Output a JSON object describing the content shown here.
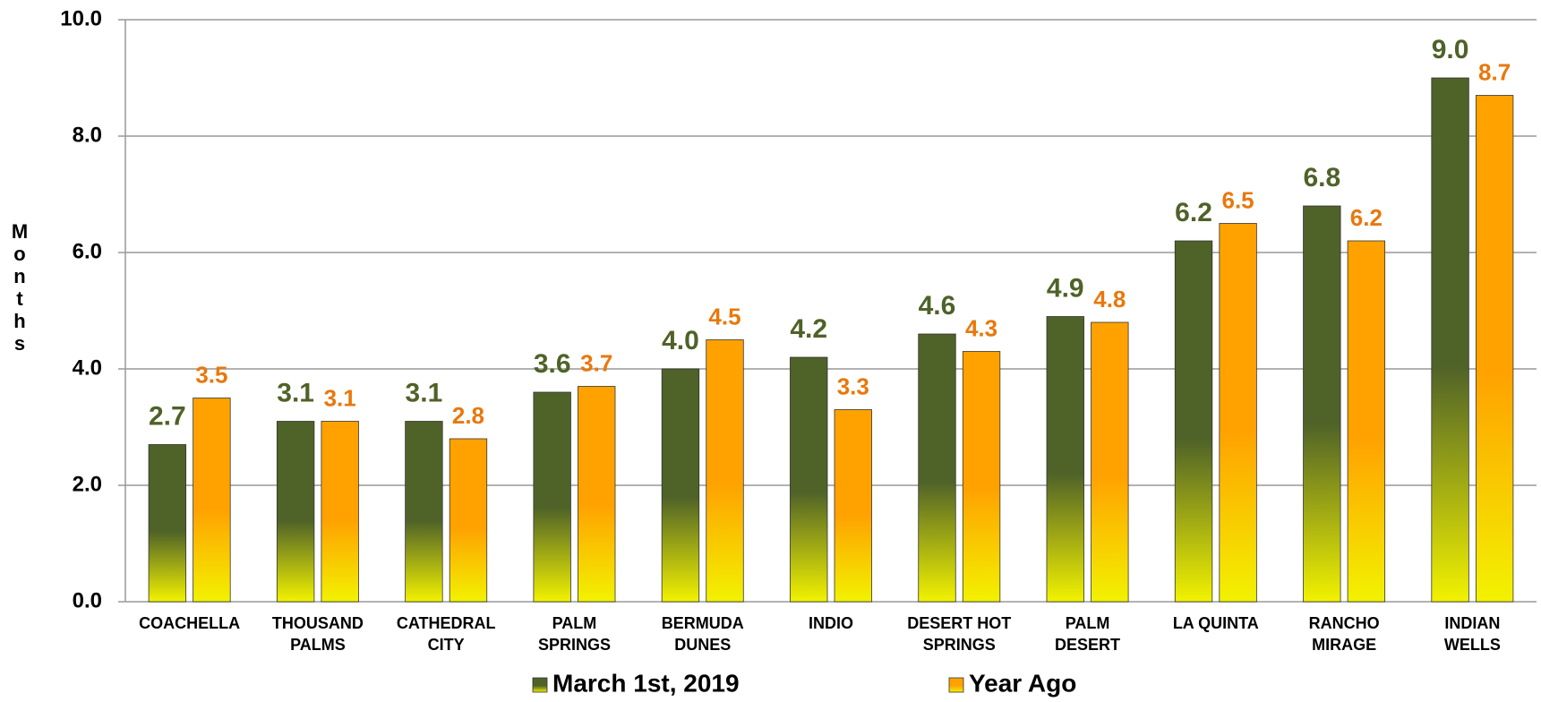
{
  "chart_data": {
    "type": "bar",
    "y_label": "Months",
    "categories": [
      "COACHELLA",
      "THOUSAND PALMS",
      "CATHEDRAL CITY",
      "PALM SPRINGS",
      "BERMUDA DUNES",
      "INDIO",
      "DESERT HOT SPRINGS",
      "PALM DESERT",
      "LA QUINTA",
      "RANCHO MIRAGE",
      "INDIAN WELLS"
    ],
    "series": [
      {
        "name": "March 1st, 2019",
        "color": "#4f6228",
        "values": [
          2.7,
          3.1,
          3.1,
          3.6,
          4.0,
          4.2,
          4.6,
          4.9,
          6.2,
          6.8,
          9.0
        ],
        "value_labels": [
          "2.7",
          "3.1",
          "3.1",
          "3.6",
          "4.0",
          "4.2",
          "4.6",
          "4.9",
          "6.2",
          "6.8",
          "9.0"
        ]
      },
      {
        "name": "Year Ago",
        "color": "#ffa200",
        "values": [
          3.5,
          3.1,
          2.8,
          3.7,
          4.5,
          3.3,
          4.3,
          4.8,
          6.5,
          6.2,
          8.7
        ],
        "value_labels": [
          "3.5",
          "3.1",
          "2.8",
          "3.7",
          "4.5",
          "3.3",
          "4.3",
          "4.8",
          "6.5",
          "6.2",
          "8.7"
        ]
      }
    ],
    "ylim": [
      0,
      10
    ],
    "yticks": [
      {
        "value": 0,
        "label": "0.0"
      },
      {
        "value": 2,
        "label": "2.0"
      },
      {
        "value": 4,
        "label": "4.0"
      },
      {
        "value": 6,
        "label": "6.0"
      },
      {
        "value": 8,
        "label": "8.0"
      },
      {
        "value": 10,
        "label": "10.0"
      }
    ],
    "grid": true,
    "legend": "bottom"
  }
}
